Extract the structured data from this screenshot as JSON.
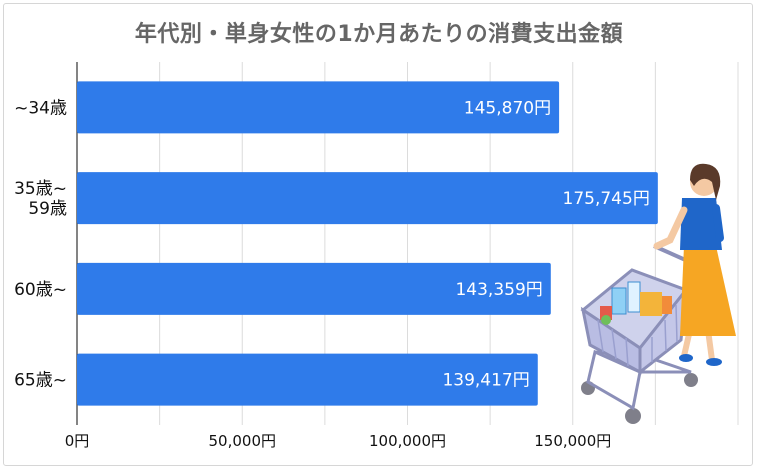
{
  "chart_data": {
    "type": "bar",
    "orientation": "horizontal",
    "title": "年代別・単身女性の1か月あたりの消費支出金額",
    "categories": [
      "~34歳",
      "35歳~\n59歳",
      "60歳~",
      "65歳~"
    ],
    "values": [
      145870,
      175745,
      143359,
      139417
    ],
    "value_labels": [
      "145,870円",
      "175,745円",
      "143,359円",
      "139,417円"
    ],
    "x_ticks": [
      0,
      50000,
      100000,
      150000
    ],
    "x_tick_labels": [
      "0円",
      "50,000円",
      "100,000円",
      "150,000円"
    ],
    "xlim": [
      0,
      200000
    ],
    "grid": true,
    "bar_color": "#2f7bea"
  },
  "illustration": {
    "icon": "woman-with-shopping-cart-icon"
  }
}
